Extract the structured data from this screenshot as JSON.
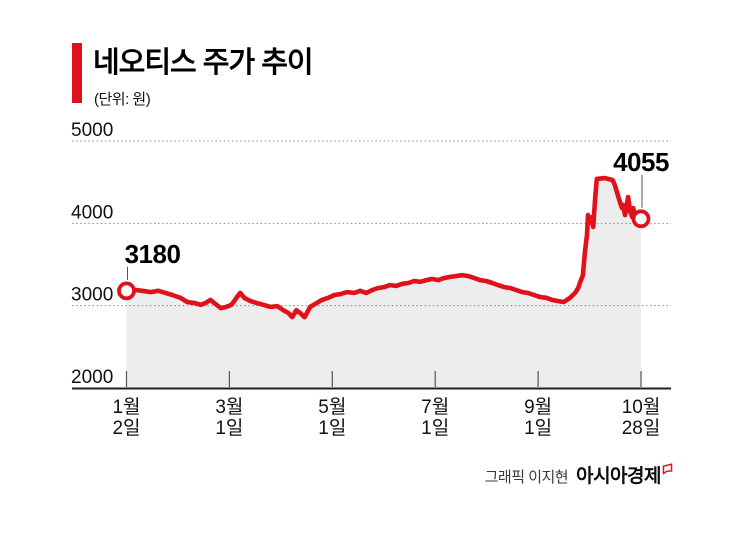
{
  "header": {
    "title": "네오티스 주가 추이",
    "unit": "(단위: 원)"
  },
  "footer": {
    "credit": "그래픽 이지현",
    "brand": "아시아경제"
  },
  "colors": {
    "accent_red": "#e0111a",
    "area_gray": "#ededed",
    "grid_gray": "#8a8a8a",
    "axis_dark": "#222222"
  },
  "chart_data": {
    "type": "line",
    "title": "네오티스 주가 추이",
    "unit_label": "(단위: 원)",
    "xlabel": "",
    "ylabel": "원",
    "ylim": [
      2000,
      5000
    ],
    "y_ticks": [
      5000,
      4000,
      3000,
      2000
    ],
    "grid": "horizontal-dotted",
    "legend": "none",
    "line_color": "#e0111a",
    "area_fill": "#ededed",
    "x_ticks": [
      {
        "month": "1월",
        "day": "2일"
      },
      {
        "month": "3월",
        "day": "1일"
      },
      {
        "month": "5월",
        "day": "1일"
      },
      {
        "month": "7월",
        "day": "1일"
      },
      {
        "month": "9월",
        "day": "1일"
      },
      {
        "month": "10월",
        "day": "28일"
      }
    ],
    "annotations": [
      {
        "label": "3180",
        "value": 3180,
        "t": 0,
        "placement": "start"
      },
      {
        "label": "4055",
        "value": 4055,
        "t": 1,
        "placement": "end"
      }
    ],
    "points": [
      [
        0.0,
        3180
      ],
      [
        0.017,
        3190
      ],
      [
        0.031,
        3180
      ],
      [
        0.047,
        3165
      ],
      [
        0.062,
        3180
      ],
      [
        0.076,
        3155
      ],
      [
        0.089,
        3130
      ],
      [
        0.105,
        3095
      ],
      [
        0.118,
        3045
      ],
      [
        0.134,
        3030
      ],
      [
        0.144,
        3010
      ],
      [
        0.153,
        3030
      ],
      [
        0.163,
        3070
      ],
      [
        0.173,
        3020
      ],
      [
        0.183,
        2970
      ],
      [
        0.194,
        2985
      ],
      [
        0.204,
        3010
      ],
      [
        0.216,
        3115
      ],
      [
        0.221,
        3155
      ],
      [
        0.229,
        3095
      ],
      [
        0.241,
        3055
      ],
      [
        0.254,
        3030
      ],
      [
        0.266,
        3010
      ],
      [
        0.28,
        2985
      ],
      [
        0.293,
        2995
      ],
      [
        0.305,
        2945
      ],
      [
        0.315,
        2910
      ],
      [
        0.322,
        2860
      ],
      [
        0.33,
        2945
      ],
      [
        0.338,
        2910
      ],
      [
        0.346,
        2860
      ],
      [
        0.357,
        2985
      ],
      [
        0.369,
        3030
      ],
      [
        0.38,
        3070
      ],
      [
        0.392,
        3095
      ],
      [
        0.404,
        3130
      ],
      [
        0.416,
        3140
      ],
      [
        0.429,
        3165
      ],
      [
        0.443,
        3155
      ],
      [
        0.454,
        3180
      ],
      [
        0.466,
        3155
      ],
      [
        0.478,
        3190
      ],
      [
        0.489,
        3215
      ],
      [
        0.501,
        3225
      ],
      [
        0.512,
        3250
      ],
      [
        0.524,
        3240
      ],
      [
        0.536,
        3265
      ],
      [
        0.548,
        3275
      ],
      [
        0.559,
        3300
      ],
      [
        0.571,
        3290
      ],
      [
        0.583,
        3310
      ],
      [
        0.594,
        3325
      ],
      [
        0.606,
        3310
      ],
      [
        0.617,
        3335
      ],
      [
        0.629,
        3350
      ],
      [
        0.641,
        3360
      ],
      [
        0.652,
        3370
      ],
      [
        0.664,
        3360
      ],
      [
        0.676,
        3335
      ],
      [
        0.687,
        3310
      ],
      [
        0.699,
        3300
      ],
      [
        0.711,
        3275
      ],
      [
        0.722,
        3250
      ],
      [
        0.734,
        3225
      ],
      [
        0.746,
        3215
      ],
      [
        0.757,
        3190
      ],
      [
        0.769,
        3165
      ],
      [
        0.78,
        3155
      ],
      [
        0.792,
        3130
      ],
      [
        0.804,
        3105
      ],
      [
        0.816,
        3095
      ],
      [
        0.827,
        3070
      ],
      [
        0.839,
        3055
      ],
      [
        0.85,
        3045
      ],
      [
        0.862,
        3095
      ],
      [
        0.872,
        3155
      ],
      [
        0.878,
        3215
      ],
      [
        0.882,
        3290
      ],
      [
        0.887,
        3370
      ],
      [
        0.891,
        3650
      ],
      [
        0.895,
        3860
      ],
      [
        0.897,
        4100
      ],
      [
        0.901,
        4005
      ],
      [
        0.905,
        4075
      ],
      [
        0.907,
        3955
      ],
      [
        0.911,
        4310
      ],
      [
        0.914,
        4540
      ],
      [
        0.93,
        4550
      ],
      [
        0.945,
        4525
      ],
      [
        0.949,
        4465
      ],
      [
        0.955,
        4345
      ],
      [
        0.959,
        4260
      ],
      [
        0.963,
        4185
      ],
      [
        0.965,
        4225
      ],
      [
        0.969,
        4100
      ],
      [
        0.975,
        4320
      ],
      [
        0.979,
        4140
      ],
      [
        0.983,
        4075
      ],
      [
        0.985,
        4185
      ],
      [
        0.989,
        4040
      ],
      [
        1.0,
        4055
      ]
    ]
  }
}
